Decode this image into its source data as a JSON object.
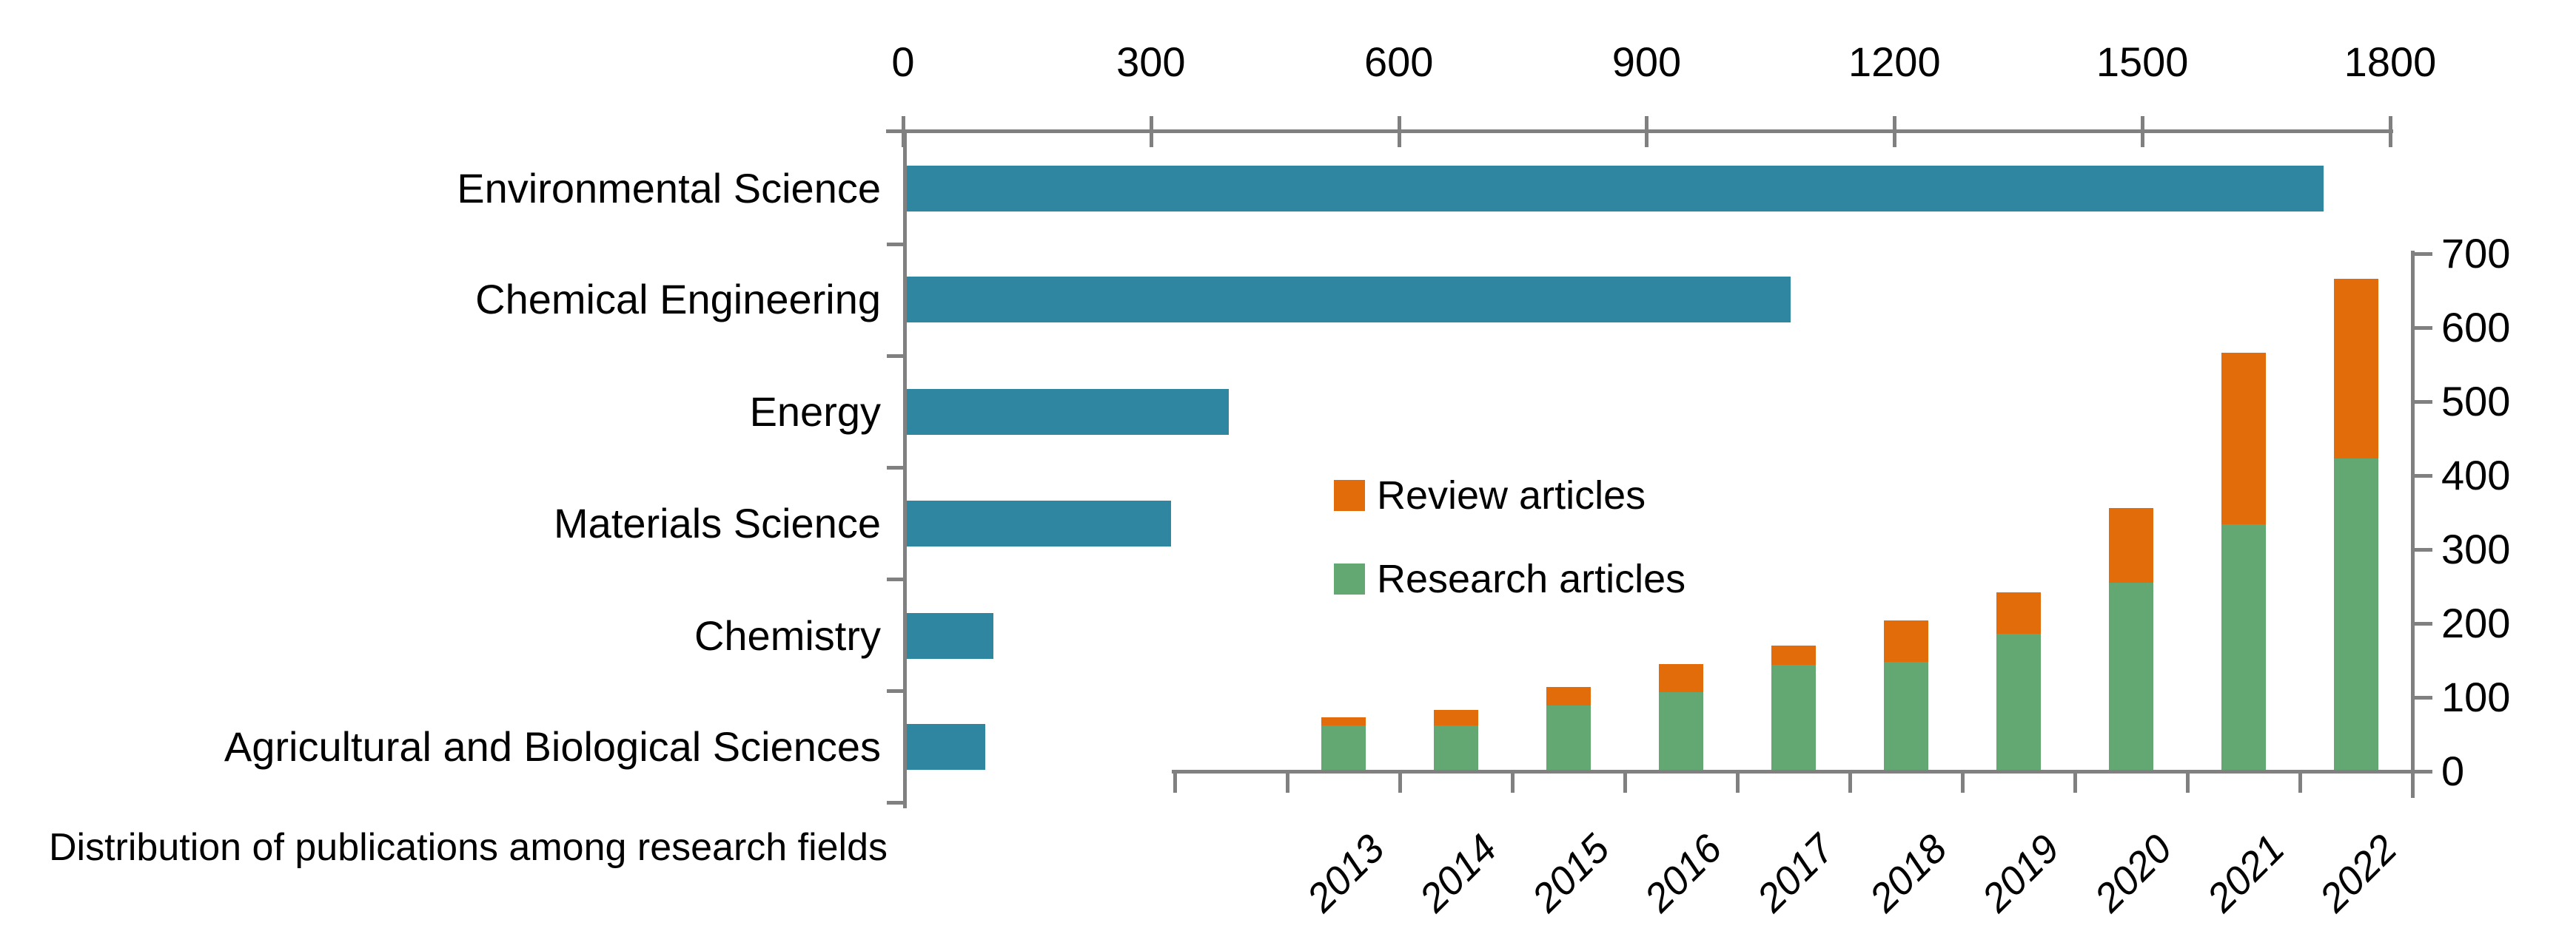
{
  "caption": "Distribution of publications among research fields",
  "legend": [
    {
      "label": "Review articles",
      "color": "#E36C0A"
    },
    {
      "label": "Research articles",
      "color": "#63A872"
    }
  ],
  "colors": {
    "field_bar": "#2E86A0",
    "review": "#E36C0A",
    "research": "#63A872",
    "axis": "#808080",
    "text": "#000000"
  },
  "chart_data": [
    {
      "type": "bar",
      "orientation": "horizontal",
      "title": "Distribution of publications among research fields",
      "categories": [
        "Environmental Science",
        "Chemical Engineering",
        "Energy",
        "Materials Science",
        "Chemistry",
        "Agricultural and Biological Sciences"
      ],
      "values": [
        1715,
        1070,
        390,
        320,
        105,
        95
      ],
      "xlabel": "",
      "ylabel": "",
      "xlim": [
        0,
        1800
      ],
      "x_ticks": [
        0,
        300,
        600,
        900,
        1200,
        1500,
        1800
      ],
      "axis_position": "top",
      "grid": false,
      "bar_color": "#2E86A0"
    },
    {
      "type": "bar",
      "subtype": "stacked-column",
      "categories": [
        "2013",
        "2014",
        "2015",
        "2016",
        "2017",
        "2018",
        "2019",
        "2020",
        "2021",
        "2022"
      ],
      "series": [
        {
          "name": "Research articles",
          "color": "#63A872",
          "values": [
            60,
            60,
            87,
            105,
            142,
            146,
            184,
            253,
            332,
            421
          ]
        },
        {
          "name": "Review articles",
          "color": "#E36C0A",
          "values": [
            11,
            21,
            25,
            38,
            26,
            56,
            56,
            101,
            232,
            243
          ]
        }
      ],
      "totals": [
        71,
        81,
        112,
        143,
        168,
        202,
        240,
        354,
        564,
        664
      ],
      "ylim": [
        0,
        700
      ],
      "y_ticks": [
        0,
        100,
        200,
        300,
        400,
        500,
        600,
        700
      ],
      "axis_position": "right",
      "grid": false,
      "legend_position": "inside-left"
    }
  ]
}
